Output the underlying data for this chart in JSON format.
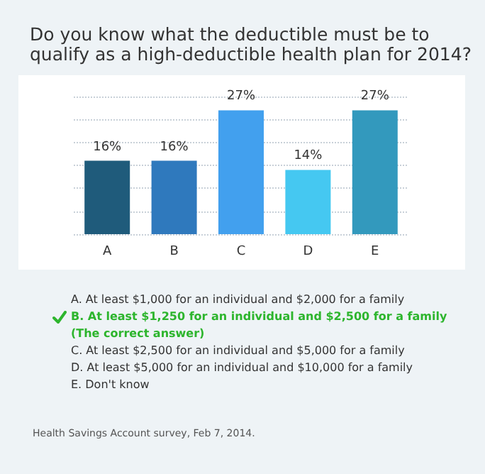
{
  "chart_data": {
    "type": "bar",
    "title": "Do you know what the deductible must be to\nqualify as a high-deductible health plan for 2014?",
    "categories": [
      "A",
      "B",
      "C",
      "D",
      "E"
    ],
    "values": [
      16,
      16,
      27,
      14,
      27
    ],
    "colors": [
      "#1f5b7b",
      "#2f79bd",
      "#42a0ee",
      "#45c8f1",
      "#3399bd"
    ],
    "value_labels": [
      "16%",
      "16%",
      "27%",
      "14%",
      "27%"
    ],
    "ylim": [
      0,
      30
    ],
    "yticks": [
      {
        "value": 0,
        "label": null
      },
      {
        "value": 5,
        "label": null
      },
      {
        "value": 10,
        "label": null
      },
      {
        "value": 15,
        "label": null
      },
      {
        "value": 20,
        "label": null
      },
      {
        "value": 25,
        "label": null
      },
      {
        "value": 30,
        "label": null
      }
    ],
    "tick_labels": "x",
    "grid": "y",
    "annotations": [
      "A. At least $1,000 for an individual and $2,000 for a family",
      "B. At least $1,250 for an individual and $2,500 for a family\n(The correct answer)",
      "C. At least $2,500 for an individual and $5,000 for a family",
      "D. At least $5,000 for an individual and $10,000 for a family",
      "E. Don't know",
      "Health Savings Account survey, Feb 7, 2014."
    ]
  }
}
